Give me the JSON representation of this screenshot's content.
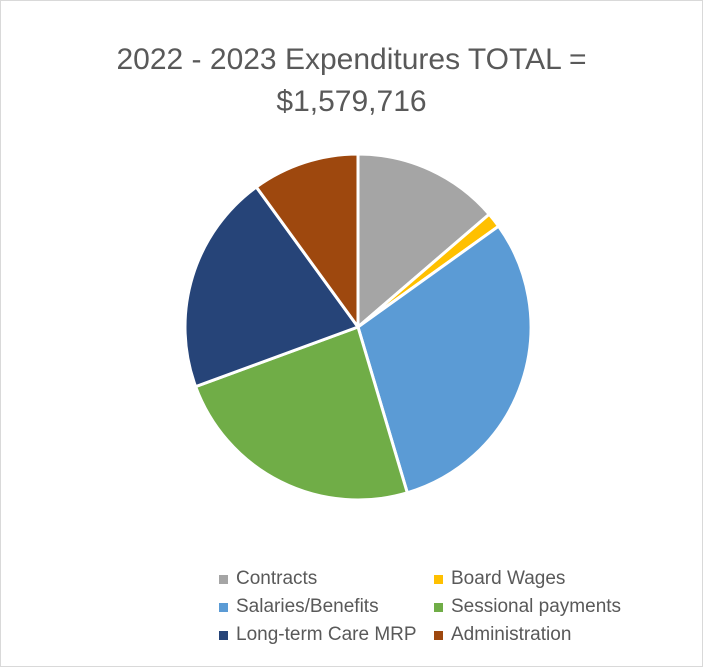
{
  "chart_data": {
    "type": "pie",
    "title_lines": [
      "2022 - 2023 Expenditures TOTAL =",
      "$1,579,716"
    ],
    "slices": [
      {
        "label": "Contracts",
        "percent": 13.7,
        "color": "#a5a5a5"
      },
      {
        "label": "Board Wages",
        "percent": 1.4,
        "color": "#ffc000"
      },
      {
        "label": "Salaries/Benefits",
        "percent": 30.3,
        "color": "#5b9bd5"
      },
      {
        "label": "Sessional payments",
        "percent": 24.0,
        "color": "#70ad47"
      },
      {
        "label": "Long-term Care MRP",
        "percent": 20.6,
        "color": "#264478"
      },
      {
        "label": "Administration",
        "percent": 10.0,
        "color": "#9e480e"
      }
    ],
    "legend_position": "bottom"
  }
}
